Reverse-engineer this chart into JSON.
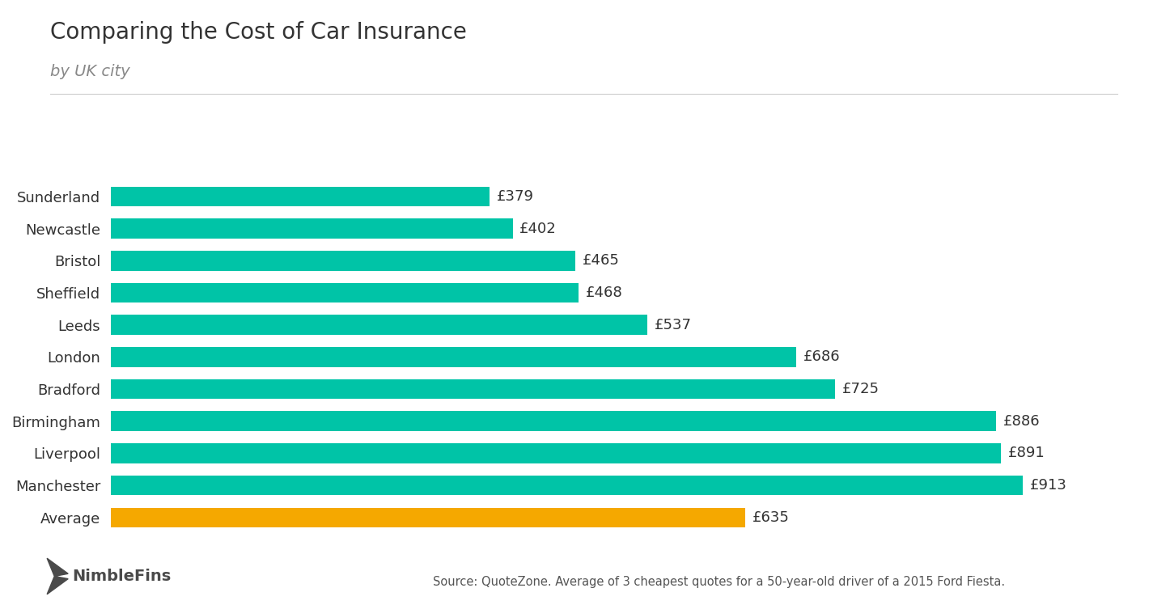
{
  "title": "Comparing the Cost of Car Insurance",
  "subtitle": "by UK city",
  "categories": [
    "Sunderland",
    "Newcastle",
    "Bristol",
    "Sheffield",
    "Leeds",
    "London",
    "Bradford",
    "Birmingham",
    "Liverpool",
    "Manchester",
    "Average"
  ],
  "values": [
    379,
    402,
    465,
    468,
    537,
    686,
    725,
    886,
    891,
    913,
    635
  ],
  "bar_colors": [
    "#00C4A7",
    "#00C4A7",
    "#00C4A7",
    "#00C4A7",
    "#00C4A7",
    "#00C4A7",
    "#00C4A7",
    "#00C4A7",
    "#00C4A7",
    "#00C4A7",
    "#F5A800"
  ],
  "teal_color": "#00C4A7",
  "gold_color": "#F5A800",
  "label_prefix": "£",
  "source_text": "Source: QuoteZone. Average of 3 cheapest quotes for a 50-year-old driver of a 2015 Ford Fiesta.",
  "nimblefins_text": "NimbleFins",
  "background_color": "#FFFFFF",
  "bar_label_color": "#333333",
  "title_color": "#333333",
  "subtitle_color": "#888888",
  "xlim": [
    0,
    990
  ],
  "title_fontsize": 20,
  "subtitle_fontsize": 14,
  "label_fontsize": 13,
  "tick_fontsize": 13,
  "source_fontsize": 10.5,
  "logo_fontsize": 14
}
